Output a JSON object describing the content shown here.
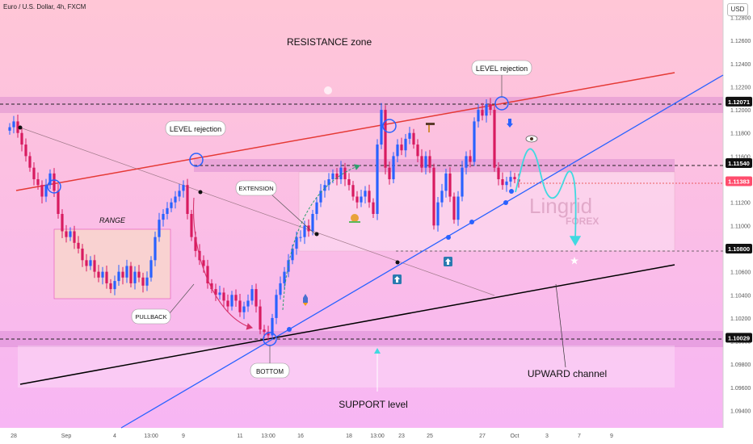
{
  "header": {
    "title": "Euro / U.S. Dollar, 4h, FXCM",
    "currency": "USD"
  },
  "colors": {
    "bull": "#2962ff",
    "bear": "#d81b60",
    "resistance_line": "#e53935",
    "channel_line": "#2962ff",
    "support_line": "#000000",
    "zone": "#c873c8",
    "bg_top": "#ffc6d6",
    "bg_bottom": "#f7b6f4",
    "range_box": "#f9dcc8",
    "curve_arrow": "#2e9e6e",
    "pullback_arrow": "#d6336c",
    "projection": "#40d9e0"
  },
  "price_axis": {
    "ticks": [
      "1.12800",
      "1.12600",
      "1.12400",
      "1.12200",
      "1.12000",
      "1.11800",
      "1.11600",
      "1.11400",
      "1.11200",
      "1.11000",
      "1.10800",
      "1.10600",
      "1.10400",
      "1.10200",
      "1.10000",
      "1.09800",
      "1.09600",
      "1.09400"
    ],
    "tick_values": [
      1.128,
      1.126,
      1.124,
      1.122,
      1.12,
      1.118,
      1.116,
      1.114,
      1.112,
      1.11,
      1.108,
      1.106,
      1.104,
      1.102,
      1.1,
      1.098,
      1.096,
      1.094
    ],
    "highlighted": [
      {
        "label": "1.12071",
        "value": 1.12071,
        "style": "dark"
      },
      {
        "label": "1.11540",
        "value": 1.1154,
        "style": "dark"
      },
      {
        "label": "1.11383",
        "value": 1.11383,
        "style": "red"
      },
      {
        "label": "1.10800",
        "value": 1.108,
        "style": "dark"
      },
      {
        "label": "1.10029",
        "value": 1.10029,
        "style": "dark"
      }
    ]
  },
  "time_axis": {
    "labels": [
      "28",
      "Sep",
      "4",
      "13:00",
      "9",
      "11",
      "13:00",
      "16",
      "18",
      "13:00",
      "23",
      "25",
      "27",
      "Oct",
      "3",
      "7",
      "9"
    ],
    "bars": [
      1,
      14,
      26,
      35,
      43,
      57,
      64,
      72,
      84,
      91,
      97,
      104,
      117,
      125,
      133,
      141,
      149
    ]
  },
  "annotations": {
    "resistance_zone": "RESISTANCE zone",
    "level_rejection_left": "LEVEL rejection",
    "level_rejection_right": "LEVEL rejection",
    "range": "RANGE",
    "extension": "EXTENSION",
    "pullback": "PULLBACK",
    "bottom": "BOTTOM",
    "support_level": "SUPPORT level",
    "upward_channel": "UPWARD channel",
    "watermark_main": "Lingrid",
    "watermark_sub": "FOREX"
  },
  "chart_data": {
    "type": "candlestick",
    "title": "Euro / U.S. Dollar, 4h, FXCM",
    "x_range_labels": [
      "28",
      "9"
    ],
    "ylim": [
      1.0925,
      1.1295
    ],
    "levels": {
      "resistance": 1.12071,
      "mid": 1.1154,
      "current": 1.11383,
      "lower": 1.108,
      "support": 1.10029
    },
    "close": [
      1.1185,
      1.119,
      1.118,
      1.117,
      1.116,
      1.115,
      1.114,
      1.1135,
      1.1125,
      1.1135,
      1.1145,
      1.113,
      1.111,
      1.1095,
      1.109,
      1.1095,
      1.1085,
      1.108,
      1.107,
      1.1065,
      1.107,
      1.106,
      1.1055,
      1.106,
      1.105,
      1.1045,
      1.1052,
      1.106,
      1.1055,
      1.1065,
      1.105,
      1.106,
      1.1055,
      1.1048,
      1.1055,
      1.107,
      1.109,
      1.1105,
      1.111,
      1.1115,
      1.112,
      1.1125,
      1.113,
      1.1135,
      1.111,
      1.109,
      1.1078,
      1.107,
      1.1065,
      1.105,
      1.1045,
      1.104,
      1.1042,
      1.1035,
      1.103,
      1.104,
      1.1035,
      1.1025,
      1.103,
      1.1035,
      1.1045,
      1.103,
      1.101,
      1.1008,
      1.1005,
      1.102,
      1.104,
      1.105,
      1.106,
      1.107,
      1.108,
      1.109,
      1.109,
      1.11,
      1.1095,
      1.111,
      1.112,
      1.113,
      1.1135,
      1.114,
      1.1145,
      1.114,
      1.115,
      1.114,
      1.1135,
      1.1125,
      1.112,
      1.1125,
      1.113,
      1.112,
      1.111,
      1.117,
      1.12,
      1.115,
      1.114,
      1.116,
      1.117,
      1.1165,
      1.1175,
      1.118,
      1.117,
      1.116,
      1.115,
      1.116,
      1.115,
      1.11,
      1.112,
      1.113,
      1.1145,
      1.1125,
      1.1105,
      1.1125,
      1.115,
      1.116,
      1.1155,
      1.119,
      1.12,
      1.1195,
      1.1205,
      1.12,
      1.115,
      1.114,
      1.1135,
      1.1138,
      1.1142,
      1.114,
      1.1138
    ]
  }
}
